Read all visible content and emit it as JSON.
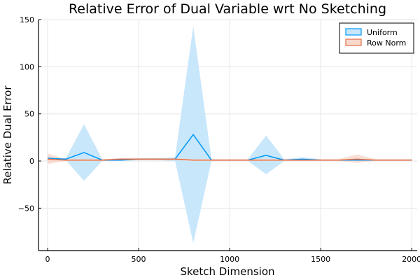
{
  "chart_data": {
    "type": "line",
    "title": "Relative Error of Dual Variable wrt No Sketching",
    "xlabel": "Sketch Dimension",
    "ylabel": "Relative Dual Error",
    "xlim": [
      -50,
      2030
    ],
    "ylim": [
      -95,
      150
    ],
    "x_ticks": [
      0,
      500,
      1000,
      1500,
      2000
    ],
    "x_tick_labels": [
      "0",
      "500",
      "1000",
      "1500",
      "2000"
    ],
    "y_ticks": [
      -50,
      0,
      50,
      100,
      150
    ],
    "y_tick_labels": [
      "−50",
      "0",
      "50",
      "100",
      "150"
    ],
    "grid": true,
    "legend_position": "top-right",
    "x": [
      0,
      100,
      200,
      300,
      400,
      500,
      600,
      700,
      800,
      900,
      1000,
      1100,
      1200,
      1300,
      1400,
      1500,
      1600,
      1700,
      1800,
      1900,
      2000
    ],
    "series": [
      {
        "name": "Uniform",
        "color": "#009AFA",
        "band_color": "#C9E7FB",
        "values": [
          3,
          2,
          9,
          1,
          1,
          2,
          2,
          2,
          28,
          1,
          1,
          1,
          6,
          1,
          2,
          1,
          1,
          1,
          1,
          1,
          1
        ],
        "upper": [
          4,
          3,
          39,
          2,
          2,
          3,
          3,
          4,
          143,
          2,
          2,
          2,
          27,
          2,
          4,
          2,
          2,
          2,
          2,
          2,
          2
        ],
        "lower": [
          2,
          1,
          -21,
          0,
          0,
          1,
          1,
          0,
          -87,
          0,
          0,
          0,
          -14,
          0,
          0,
          0,
          0,
          0,
          0,
          0,
          0
        ]
      },
      {
        "name": "Row Norm",
        "color": "#E36F47",
        "band_color": "#F8D8CB",
        "values": [
          2,
          1,
          1,
          1,
          2,
          2,
          2,
          2,
          1,
          1,
          1,
          1,
          1,
          1,
          1,
          1,
          1,
          2,
          1,
          1,
          1
        ],
        "upper": [
          8,
          2,
          2,
          2,
          3,
          3,
          3,
          3,
          2,
          2,
          2,
          2,
          2,
          2,
          2,
          2,
          2,
          7,
          2,
          2,
          2
        ],
        "lower": [
          -3,
          0,
          0,
          0,
          1,
          1,
          1,
          1,
          0,
          0,
          0,
          0,
          0,
          0,
          0,
          0,
          0,
          -2,
          0,
          0,
          0
        ]
      }
    ]
  }
}
